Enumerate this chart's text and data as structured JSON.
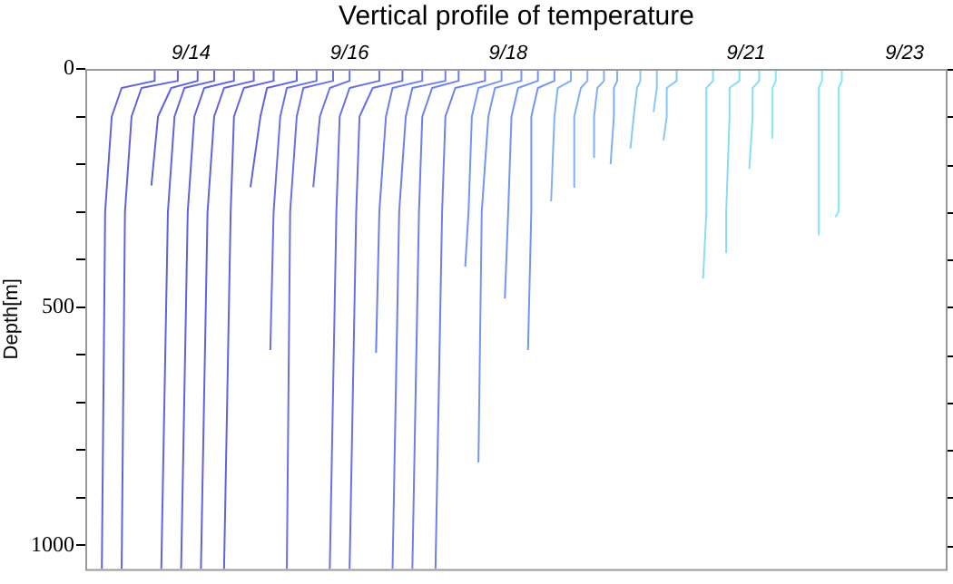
{
  "chart_data": {
    "type": "line",
    "title": "Vertical profile of temperature",
    "ylabel": "Depth[m]",
    "xlim": [
      "--09-12T16:00",
      "--09-23T13:00"
    ],
    "xticks": [
      {
        "value": "--09-14",
        "label": "9/14"
      },
      {
        "value": "--09-16",
        "label": "9/16"
      },
      {
        "value": "--09-18",
        "label": "9/18"
      },
      {
        "value": "--09-21",
        "label": "9/21"
      },
      {
        "value": "--09-23",
        "label": "9/23"
      }
    ],
    "ylim": [
      1050,
      0
    ],
    "yticks": [
      0,
      {
        "value": 100,
        "label": null
      },
      {
        "value": 200,
        "label": null
      },
      {
        "value": 300,
        "label": null
      },
      {
        "value": 400,
        "label": null
      },
      500,
      {
        "value": 600,
        "label": null
      },
      {
        "value": 700,
        "label": null
      },
      {
        "value": 800,
        "label": null
      },
      {
        "value": 900,
        "label": null
      },
      1000
    ],
    "grid": false,
    "legend": false,
    "marker": "none",
    "line_style": "solid",
    "series": [
      {
        "color": "#6262dc",
        "x": [
          "--09-13T13:00",
          "--09-13T13:00",
          "--09-13T03:00",
          "--09-13T00:00",
          "--09-12T22:00",
          "--09-12T21:00"
        ],
        "values": [
          0,
          25,
          40,
          100,
          300,
          1050
        ]
      },
      {
        "color": "#6262dc",
        "x": [
          "--09-13T20:00",
          "--09-13T20:00",
          "--09-13T09:00",
          "--09-13T06:00",
          "--09-13T04:00",
          "--09-13T03:00"
        ],
        "values": [
          0,
          25,
          40,
          100,
          300,
          1050
        ]
      },
      {
        "color": "#6262dc",
        "x": [
          "--09-14T02:00",
          "--09-14T02:00",
          "--09-13T18:00",
          "--09-13T14:00",
          "--09-13T12:00"
        ],
        "values": [
          0,
          25,
          40,
          100,
          245
        ]
      },
      {
        "color": "#6262dc",
        "x": [
          "--09-14T07:00",
          "--09-14T07:00",
          "--09-13T22:00",
          "--09-13T19:00",
          "--09-13T17:00",
          "--09-13T15:00"
        ],
        "values": [
          0,
          25,
          40,
          100,
          300,
          1050
        ]
      },
      {
        "color": "#6262dc",
        "x": [
          "--09-14T13:00",
          "--09-14T13:00",
          "--09-14T04:00",
          "--09-14T01:00",
          "--09-13T23:00",
          "--09-13T21:00"
        ],
        "values": [
          0,
          25,
          40,
          100,
          300,
          1050
        ]
      },
      {
        "color": "#6262dc",
        "x": [
          "--09-14T19:00",
          "--09-14T19:00",
          "--09-14T10:00",
          "--09-14T07:00",
          "--09-14T05:00",
          "--09-14T03:00"
        ],
        "values": [
          0,
          25,
          40,
          100,
          300,
          1050
        ]
      },
      {
        "color": "#6262dc",
        "x": [
          "--09-15T01:00",
          "--09-15T01:00",
          "--09-14T16:00",
          "--09-14T13:00",
          "--09-14T12:00",
          "--09-14T10:00"
        ],
        "values": [
          0,
          25,
          40,
          100,
          300,
          1050
        ]
      },
      {
        "color": "#6262dc",
        "x": [
          "--09-15T08:00",
          "--09-15T08:00",
          "--09-14T23:00",
          "--09-14T21:00",
          "--09-14T18:00"
        ],
        "values": [
          0,
          25,
          40,
          100,
          248
        ]
      },
      {
        "color": "#6870e4",
        "x": [
          "--09-15T14:00",
          "--09-15T14:00",
          "--09-15T05:00",
          "--09-15T03:00",
          "--09-15T01:00",
          "--09-15T00:00"
        ],
        "values": [
          0,
          25,
          40,
          100,
          300,
          590
        ]
      },
      {
        "color": "#6870e4",
        "x": [
          "--09-15T19:00",
          "--09-15T19:00",
          "--09-15T10:00",
          "--09-15T08:00",
          "--09-15T06:00",
          "--09-15T05:00"
        ],
        "values": [
          0,
          25,
          40,
          100,
          300,
          1050
        ]
      },
      {
        "color": "#6870e4",
        "x": [
          "--09-16T00:00",
          "--09-16T00:00",
          "--09-15T18:00",
          "--09-15T15:00",
          "--09-15T13:00"
        ],
        "values": [
          0,
          25,
          40,
          100,
          248
        ]
      },
      {
        "color": "#6870e4",
        "x": [
          "--09-16T09:00",
          "--09-16T09:00",
          "--09-16T00:00",
          "--09-15T21:00",
          "--09-15T20:00",
          "--09-15T18:00"
        ],
        "values": [
          0,
          25,
          40,
          100,
          300,
          1050
        ]
      },
      {
        "color": "#6870e4",
        "x": [
          "--09-16T16:00",
          "--09-16T16:00",
          "--09-16T07:00",
          "--09-16T03:00",
          "--09-16T02:00",
          "--09-16T00:00"
        ],
        "values": [
          0,
          25,
          40,
          100,
          300,
          1050
        ]
      },
      {
        "color": "#6c80ec",
        "x": [
          "--09-16T22:00",
          "--09-16T22:00",
          "--09-16T13:00",
          "--09-16T11:00",
          "--09-16T09:00",
          "--09-16T08:00"
        ],
        "values": [
          0,
          25,
          40,
          100,
          300,
          596
        ]
      },
      {
        "color": "#6c80ec",
        "x": [
          "--09-17T05:00",
          "--09-17T05:00",
          "--09-16T19:00",
          "--09-16T17:00",
          "--09-16T15:00",
          "--09-16T13:00"
        ],
        "values": [
          0,
          25,
          40,
          100,
          300,
          1050
        ]
      },
      {
        "color": "#6c80ec",
        "x": [
          "--09-17T09:00",
          "--09-17T09:00",
          "--09-17T01:00",
          "--09-16T22:00",
          "--09-16T21:00",
          "--09-16T19:00"
        ],
        "values": [
          0,
          25,
          40,
          100,
          300,
          1050
        ]
      },
      {
        "color": "#6c80ec",
        "x": [
          "--09-17T17:00",
          "--09-17T17:00",
          "--09-17T08:00",
          "--09-17T05:00",
          "--09-17T04:00",
          "--09-17T02:00"
        ],
        "values": [
          0,
          25,
          40,
          100,
          300,
          1050
        ]
      },
      {
        "color": "#7496f2",
        "x": [
          "--09-17T22:00",
          "--09-17T22:00",
          "--09-17T15:00",
          "--09-17T13:00",
          "--09-17T12:00",
          "--09-17T11:00"
        ],
        "values": [
          0,
          25,
          40,
          100,
          300,
          415
        ]
      },
      {
        "color": "#7496f2",
        "x": [
          "--09-18T04:00",
          "--09-18T04:00",
          "--09-17T20:00",
          "--09-17T18:00",
          "--09-17T16:00",
          "--09-17T15:00"
        ],
        "values": [
          0,
          25,
          40,
          100,
          300,
          826
        ]
      },
      {
        "color": "#7496f2",
        "x": [
          "--09-18T09:00",
          "--09-18T09:00",
          "--09-18T03:00",
          "--09-18T01:00",
          "--09-18T00:00",
          "--09-17T23:00"
        ],
        "values": [
          0,
          25,
          40,
          100,
          300,
          482
        ]
      },
      {
        "color": "#7496f2",
        "x": [
          "--09-18T14:00",
          "--09-18T14:00",
          "--09-18T09:00",
          "--09-18T07:00",
          "--09-18T07:00",
          "--09-18T06:00"
        ],
        "values": [
          0,
          25,
          40,
          100,
          300,
          590
        ]
      },
      {
        "color": "#80b0f4",
        "x": [
          "--09-18T19:00",
          "--09-18T19:00",
          "--09-18T15:00",
          "--09-18T14:00",
          "--09-18T13:00"
        ],
        "values": [
          0,
          25,
          40,
          100,
          278
        ]
      },
      {
        "color": "#80b0f4",
        "x": [
          "--09-19T00:00",
          "--09-19T00:00",
          "--09-18T22:00",
          "--09-18T20:00",
          "--09-18T20:00"
        ],
        "values": [
          0,
          25,
          40,
          100,
          248
        ]
      },
      {
        "color": "#80b0f4",
        "x": [
          "--09-19T05:00",
          "--09-19T05:00",
          "--09-19T03:00",
          "--09-19T02:00",
          "--09-19T02:00"
        ],
        "values": [
          0,
          25,
          40,
          100,
          185
        ]
      },
      {
        "color": "#80b0f4",
        "x": [
          "--09-19T09:00",
          "--09-19T09:00",
          "--09-19T08:00",
          "--09-19T08:00",
          "--09-19T07:00"
        ],
        "values": [
          0,
          25,
          40,
          100,
          200
        ]
      },
      {
        "color": "#86c8f6",
        "x": [
          "--09-19T16:00",
          "--09-19T16:00",
          "--09-19T15:00",
          "--09-19T14:00",
          "--09-19T13:00"
        ],
        "values": [
          0,
          25,
          40,
          100,
          167
        ]
      },
      {
        "color": "#86c8f6",
        "x": [
          "--09-19T21:00",
          "--09-19T21:00",
          "--09-19T21:00",
          "--09-19T20:00"
        ],
        "values": [
          0,
          25,
          40,
          90
        ]
      },
      {
        "color": "#86c8f6",
        "x": [
          "--09-20T03:00",
          "--09-20T03:00",
          "--09-20T00:00",
          "--09-20T00:00",
          "--09-19T23:00"
        ],
        "values": [
          0,
          25,
          40,
          100,
          150
        ]
      },
      {
        "color": "#88dcf8",
        "x": [
          "--09-20T14:00",
          "--09-20T14:00",
          "--09-20T12:00",
          "--09-20T12:00",
          "--09-20T12:00",
          "--09-20T11:00"
        ],
        "values": [
          0,
          25,
          40,
          100,
          300,
          440
        ]
      },
      {
        "color": "#88dcf8",
        "x": [
          "--09-20T22:00",
          "--09-20T22:00",
          "--09-20T19:00",
          "--09-20T19:00",
          "--09-20T18:00",
          "--09-20T18:00"
        ],
        "values": [
          0,
          25,
          40,
          100,
          300,
          385
        ]
      },
      {
        "color": "#88dcf8",
        "x": [
          "--09-21T04:00",
          "--09-21T04:00",
          "--09-21T02:00",
          "--09-21T02:00",
          "--09-21T01:00"
        ],
        "values": [
          0,
          25,
          40,
          100,
          210
        ]
      },
      {
        "color": "#80eafc",
        "x": [
          "--09-21T09:00",
          "--09-21T09:00",
          "--09-21T08:00",
          "--09-21T08:00",
          "--09-21T08:00"
        ],
        "values": [
          0,
          25,
          40,
          100,
          145
        ]
      },
      {
        "color": "#80eafc",
        "x": [
          "--09-21T23:00",
          "--09-21T23:00",
          "--09-21T22:00",
          "--09-21T22:00",
          "--09-21T22:00",
          "--09-21T22:00"
        ],
        "values": [
          0,
          25,
          40,
          100,
          300,
          348
        ]
      },
      {
        "color": "#80eafc",
        "x": [
          "--09-22T05:00",
          "--09-22T05:00",
          "--09-22T04:00",
          "--09-22T04:00",
          "--09-22T04:00",
          "--09-22T03:00"
        ],
        "values": [
          0,
          25,
          40,
          100,
          300,
          311
        ]
      }
    ]
  }
}
